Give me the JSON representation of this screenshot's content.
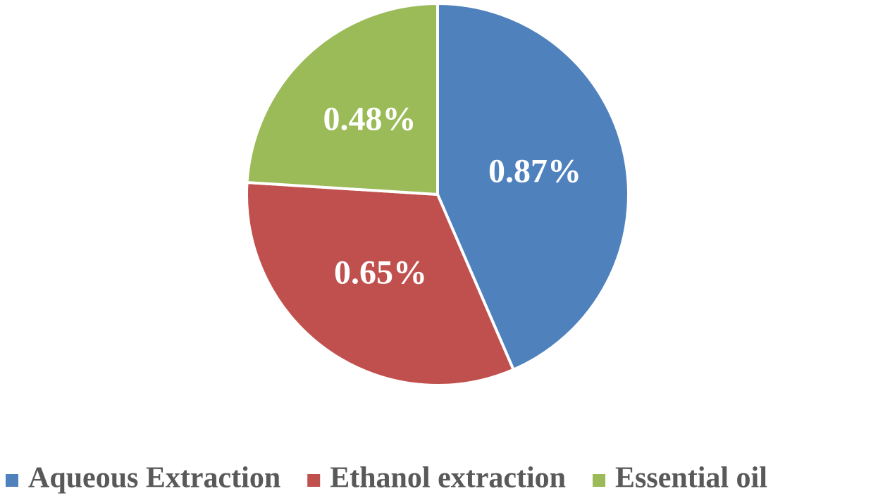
{
  "chart_data": {
    "type": "pie",
    "categories": [
      "Aqueous Extraction",
      "Ethanol extraction",
      "Essential oil"
    ],
    "values": [
      0.87,
      0.65,
      0.48
    ],
    "value_labels": [
      "0.87%",
      "0.65%",
      "0.48%"
    ],
    "colors": [
      "#4f81bd",
      "#c0504d",
      "#9bbb59"
    ],
    "legend": "bottom"
  }
}
